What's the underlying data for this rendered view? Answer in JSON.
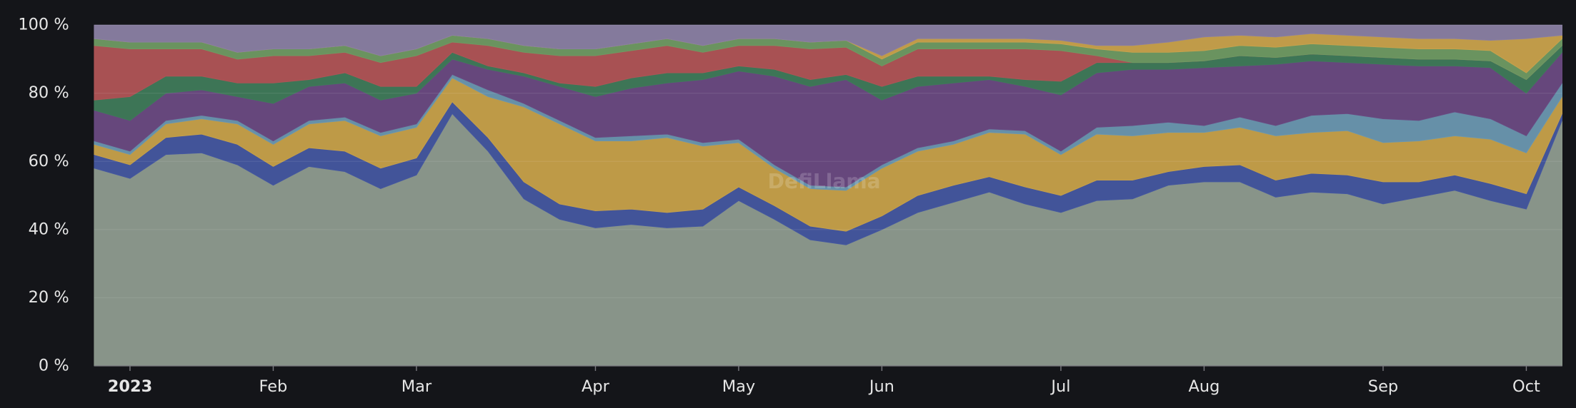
{
  "chart_data": {
    "type": "stacked_area_percent",
    "watermark": "DefiLlama",
    "categories": [
      null,
      "2023",
      null,
      null,
      null,
      "Feb",
      null,
      null,
      null,
      "Mar",
      null,
      null,
      null,
      null,
      "Apr",
      null,
      null,
      null,
      "May",
      null,
      null,
      null,
      "Jun",
      null,
      null,
      null,
      null,
      "Jul",
      null,
      null,
      null,
      "Aug",
      null,
      null,
      null,
      null,
      "Sep",
      null,
      null,
      null,
      "Oct",
      null
    ],
    "ylim": [
      0,
      100
    ],
    "yticks": [
      {
        "value": 0,
        "label": "0 %"
      },
      {
        "value": 20,
        "label": "20 %"
      },
      {
        "value": 40,
        "label": "40 %"
      },
      {
        "value": 60,
        "label": "60 %"
      },
      {
        "value": 80,
        "label": "80 %"
      },
      {
        "value": 100,
        "label": "100 %"
      }
    ],
    "grid": true,
    "series": [
      {
        "color": "#8e9b8f",
        "values": [
          58,
          55,
          62,
          62.5,
          59,
          53,
          58.5,
          57,
          52,
          56,
          74,
          63,
          49,
          43,
          40.5,
          41.5,
          40.5,
          41,
          48.5,
          43,
          37,
          35.5,
          40,
          45,
          48,
          51,
          47.5,
          45,
          48.5,
          49,
          53,
          54,
          54,
          49.5,
          51,
          50.5,
          47.5,
          49.5,
          51.5,
          48.5,
          46,
          72
        ]
      },
      {
        "color": "#4457a0",
        "values": [
          4,
          4,
          5,
          5.5,
          6,
          5.5,
          5.5,
          6,
          6,
          5,
          3.5,
          4,
          5,
          4.5,
          5,
          4.5,
          4.5,
          5,
          4,
          4,
          4,
          4,
          4,
          5,
          5,
          4.5,
          5,
          5,
          6,
          5.5,
          4,
          4.5,
          5,
          5,
          5.5,
          5.5,
          6.5,
          4.5,
          4.5,
          5,
          4.5,
          2
        ]
      },
      {
        "color": "#c7a14a",
        "values": [
          3,
          3,
          4,
          4.5,
          6,
          6.5,
          7,
          9,
          9.5,
          9,
          7,
          12,
          22,
          23.5,
          20.5,
          20,
          22,
          18.5,
          13,
          11,
          11,
          12,
          14,
          13,
          12,
          13,
          15.5,
          12,
          13.5,
          13,
          11.5,
          10,
          11,
          13,
          12,
          13,
          11.5,
          12,
          11.5,
          13,
          12,
          5
        ]
      },
      {
        "color": "#6a97b0",
        "values": [
          1,
          1,
          1,
          1,
          1,
          1,
          1,
          1,
          1,
          1,
          1,
          2,
          1,
          1,
          1,
          1.5,
          1,
          1,
          1,
          1,
          1,
          1,
          1,
          1,
          1,
          1,
          1,
          1,
          2,
          3,
          3,
          2,
          3,
          3,
          5,
          5,
          7,
          6,
          7,
          6,
          5,
          4
        ]
      },
      {
        "color": "#6a4a82",
        "values": [
          9,
          9,
          8,
          7.5,
          7,
          11,
          10,
          10,
          9.5,
          9,
          4.5,
          6,
          8,
          10,
          12,
          14,
          15,
          18.5,
          20,
          26,
          29,
          31.5,
          19,
          18,
          17,
          14.5,
          13,
          16.5,
          16,
          16.5,
          15.5,
          17,
          15,
          18,
          16,
          15,
          16,
          16,
          13.5,
          15,
          12.5,
          9
        ]
      },
      {
        "color": "#3f7a5a",
        "values": [
          3,
          7,
          5,
          4,
          4,
          6,
          2,
          3,
          4,
          2,
          2,
          1,
          1,
          1,
          3,
          3,
          3,
          2,
          1.5,
          2,
          2,
          1.5,
          4,
          3,
          2,
          1,
          2,
          4,
          3,
          2,
          2,
          2,
          3,
          2,
          2,
          2,
          2,
          2,
          2,
          2,
          4,
          2
        ]
      },
      {
        "color": "#b05456",
        "values": [
          16,
          14,
          8,
          8,
          7,
          8,
          7,
          6,
          7,
          9,
          3,
          6,
          6,
          8,
          9,
          8,
          8,
          6,
          6,
          7,
          9,
          8,
          6,
          8,
          8,
          8,
          9,
          9,
          2,
          0,
          0,
          0,
          0,
          0,
          0,
          0,
          0,
          0,
          0,
          0,
          0,
          0
        ]
      },
      {
        "color": "#6f9a63",
        "values": [
          2,
          2,
          2,
          2,
          2,
          2,
          2,
          2,
          2,
          2,
          2,
          2,
          2,
          2,
          2,
          2,
          2,
          2,
          2,
          2,
          2,
          2,
          2,
          2,
          2,
          2,
          2,
          2,
          2,
          3,
          3,
          3,
          3,
          3,
          3,
          3,
          3,
          3,
          3,
          3,
          2,
          2
        ]
      },
      {
        "color": "#c9a24c",
        "values": [
          0,
          0,
          0,
          0,
          0,
          0,
          0,
          0,
          0,
          0,
          0,
          0,
          0,
          0,
          0,
          0,
          0,
          0,
          0,
          0,
          0,
          0,
          1,
          1,
          1,
          1,
          1,
          1,
          1,
          2,
          3,
          4,
          3,
          3,
          3,
          3,
          3,
          3,
          3,
          3,
          10,
          1
        ]
      },
      {
        "color": "#8a7fa3",
        "values": [
          4,
          5,
          5,
          5,
          8,
          7,
          7,
          6,
          9,
          7,
          3,
          4,
          6,
          7,
          7,
          5.5,
          4,
          6,
          4,
          4,
          5,
          4.5,
          9,
          4,
          4,
          4,
          4,
          4.5,
          6,
          6,
          5,
          3.5,
          3,
          3.5,
          2.5,
          3,
          3.5,
          4,
          4,
          4.5,
          4,
          3
        ]
      }
    ]
  }
}
